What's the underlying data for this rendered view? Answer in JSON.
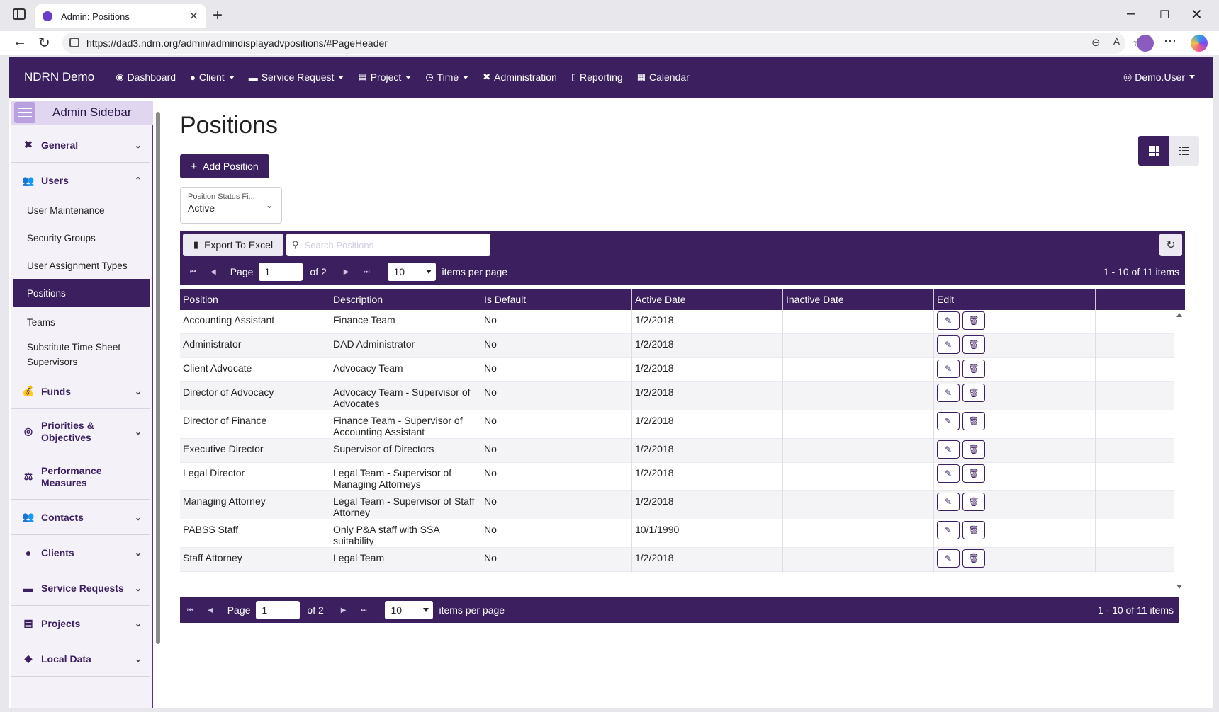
{
  "browser": {
    "tab_title": "Admin: Positions",
    "url": "https://dad3.ndrn.org/admin/admindisplayadvpositions/#PageHeader"
  },
  "topnav": {
    "brand": "NDRN Demo",
    "items": [
      {
        "label": "Dashboard",
        "icon": "dashboard-icon"
      },
      {
        "label": "Client",
        "icon": "user-icon"
      },
      {
        "label": "Service Request",
        "icon": "briefcase-icon"
      },
      {
        "label": "Project",
        "icon": "clipboard-icon"
      },
      {
        "label": "Time",
        "icon": "clock-icon"
      },
      {
        "label": "Administration",
        "icon": "tools-icon"
      },
      {
        "label": "Reporting",
        "icon": "file-icon"
      },
      {
        "label": "Calendar",
        "icon": "calendar-icon"
      }
    ],
    "user": "Demo.User"
  },
  "sidebar": {
    "title": "Admin Sidebar",
    "general": "General",
    "users": "Users",
    "sub": {
      "user_maintenance": "User Maintenance",
      "security_groups": "Security Groups",
      "user_assignment_types": "User Assignment Types",
      "positions": "Positions",
      "teams": "Teams",
      "substitute_line1": "Substitute Time Sheet",
      "substitute_line2": "Supervisors"
    },
    "funds": "Funds",
    "priorities_line1": "Priorities &",
    "priorities_line2": "Objectives",
    "performance_line1": "Performance",
    "performance_line2": "Measures",
    "contacts": "Contacts",
    "clients": "Clients",
    "service_requests": "Service Requests",
    "projects": "Projects",
    "local_data": "Local Data"
  },
  "page": {
    "title": "Positions",
    "add_button": "Add Position",
    "status_filter_label": "Position Status Fi...",
    "status_filter_value": "Active"
  },
  "grid": {
    "export_label": "Export To Excel",
    "search_placeholder": "Search Positions",
    "pager": {
      "page_label": "Page",
      "page_value": "1",
      "of_label": "of 2",
      "page_size": "10",
      "items_per_page": "items per page",
      "info": "1 - 10 of 11 items"
    },
    "columns": [
      "Position",
      "Description",
      "Is Default",
      "Active Date",
      "Inactive Date",
      "Edit"
    ],
    "rows": [
      {
        "position": "Accounting Assistant",
        "description": "Finance Team",
        "is_default": "No",
        "active_date": "1/2/2018",
        "inactive_date": ""
      },
      {
        "position": "Administrator",
        "description": "DAD Administrator",
        "is_default": "No",
        "active_date": "1/2/2018",
        "inactive_date": ""
      },
      {
        "position": "Client Advocate",
        "description": "Advocacy Team",
        "is_default": "No",
        "active_date": "1/2/2018",
        "inactive_date": ""
      },
      {
        "position": "Director of Advocacy",
        "description": "Advocacy Team - Supervisor of Advocates",
        "is_default": "No",
        "active_date": "1/2/2018",
        "inactive_date": ""
      },
      {
        "position": "Director of Finance",
        "description": "Finance Team - Supervisor of Accounting Assistant",
        "is_default": "No",
        "active_date": "1/2/2018",
        "inactive_date": ""
      },
      {
        "position": "Executive Director",
        "description": "Supervisor of Directors",
        "is_default": "No",
        "active_date": "1/2/2018",
        "inactive_date": ""
      },
      {
        "position": "Legal Director",
        "description": "Legal Team - Supervisor of Managing Attorneys",
        "is_default": "No",
        "active_date": "1/2/2018",
        "inactive_date": ""
      },
      {
        "position": "Managing Attorney",
        "description": "Legal Team - Supervisor of Staff Attorney",
        "is_default": "No",
        "active_date": "1/2/2018",
        "inactive_date": ""
      },
      {
        "position": "PABSS Staff",
        "description": "Only P&A staff with SSA suitability",
        "is_default": "No",
        "active_date": "10/1/1990",
        "inactive_date": ""
      },
      {
        "position": "Staff Attorney",
        "description": "Legal Team",
        "is_default": "No",
        "active_date": "1/2/2018",
        "inactive_date": ""
      }
    ]
  },
  "colors": {
    "primary": "#3b1f5f",
    "sidebar_header": "#e1d6f0"
  }
}
